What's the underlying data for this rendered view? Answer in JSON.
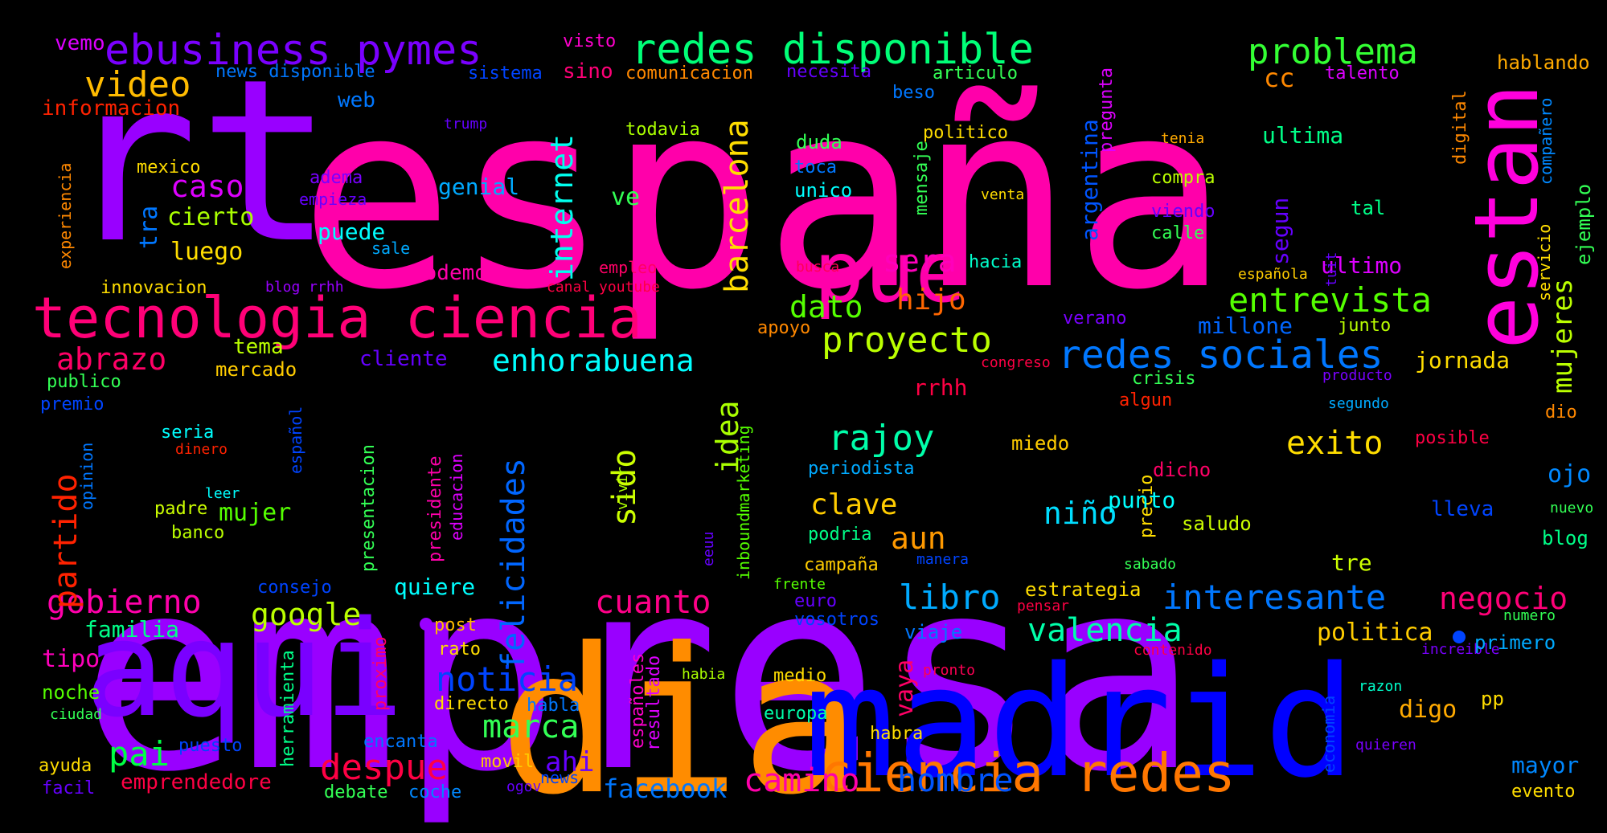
{
  "words": [
    {
      "text": "empresa",
      "color": "#9900ff"
    },
    {
      "text": "españa",
      "color": "#ff00aa"
    },
    {
      "text": "rt",
      "color": "#9900ff"
    },
    {
      "text": "dia",
      "color": "#ff8c00"
    },
    {
      "text": "madrid",
      "color": "#0000ff"
    },
    {
      "text": "aqui",
      "color": "#7a00ff"
    },
    {
      "text": "pue",
      "color": "#ff00aa"
    },
    {
      "text": "estan",
      "color": "#ff00dd"
    },
    {
      "text": "tecnologia ciencia",
      "color": "#ff0077"
    },
    {
      "text": "ciencia redes",
      "color": "#ff7700"
    },
    {
      "text": "redes sociales",
      "color": "#0077ff"
    },
    {
      "text": "ebusiness pymes",
      "color": "#7a00ff"
    },
    {
      "text": "redes disponible",
      "color": "#00ff77"
    },
    {
      "text": "problema",
      "color": "#33ff33"
    },
    {
      "text": "video",
      "color": "#ffbb00"
    },
    {
      "text": "enhorabuena",
      "color": "#00ffff"
    },
    {
      "text": "proyecto",
      "color": "#bbff00"
    },
    {
      "text": "entrevista",
      "color": "#55ff00"
    },
    {
      "text": "felicidades",
      "color": "#0066ff"
    },
    {
      "text": "internet",
      "color": "#00ffee"
    },
    {
      "text": "barcelona",
      "color": "#ffdd00"
    },
    {
      "text": "gobierno",
      "color": "#ff00aa"
    },
    {
      "text": "interesante",
      "color": "#0077ff"
    },
    {
      "text": "negocio",
      "color": "#ff0077"
    },
    {
      "text": "noticia",
      "color": "#0044ff"
    },
    {
      "text": "despue",
      "color": "#ff0044"
    },
    {
      "text": "cuanto",
      "color": "#ff0088"
    },
    {
      "text": "valencia",
      "color": "#00ffaa"
    },
    {
      "text": "libro",
      "color": "#00aaff"
    },
    {
      "text": "camino",
      "color": "#ff00aa"
    },
    {
      "text": "hombre",
      "color": "#0055ff"
    },
    {
      "text": "facebook",
      "color": "#0077ff"
    },
    {
      "text": "google",
      "color": "#bbff00"
    },
    {
      "text": "partido",
      "color": "#ff2200"
    },
    {
      "text": "abrazo",
      "color": "#ff0066"
    },
    {
      "text": "mujeres",
      "color": "#bbff00"
    },
    {
      "text": "exito",
      "color": "#ffdd00"
    },
    {
      "text": "rajoy",
      "color": "#00ffaa"
    },
    {
      "text": "clave",
      "color": "#ffcc00"
    },
    {
      "text": "marca",
      "color": "#33ff55"
    },
    {
      "text": "pai",
      "color": "#00ff44"
    },
    {
      "text": "sido",
      "color": "#ccff00"
    },
    {
      "text": "idea",
      "color": "#aaff00"
    },
    {
      "text": "sera",
      "color": "#ff00bb"
    },
    {
      "text": "hijo",
      "color": "#ff6600"
    },
    {
      "text": "dato",
      "color": "#55ff00"
    },
    {
      "text": "niño",
      "color": "#00ddff"
    },
    {
      "text": "aun",
      "color": "#ff9900"
    },
    {
      "text": "caso",
      "color": "#dd00ff"
    },
    {
      "text": "cc",
      "color": "#ff8800"
    },
    {
      "text": "ultima",
      "color": "#00ff88"
    },
    {
      "text": "ultimo",
      "color": "#dd00ff"
    },
    {
      "text": "jornada",
      "color": "#ffdd00"
    },
    {
      "text": "millone",
      "color": "#0066ff"
    },
    {
      "text": "segun",
      "color": "#6600ff"
    },
    {
      "text": "argentina",
      "color": "#0055ff"
    },
    {
      "text": "ejemplo",
      "color": "#33ff55"
    },
    {
      "text": "politica",
      "color": "#ffcc00"
    },
    {
      "text": "tre",
      "color": "#ccff00"
    },
    {
      "text": "digo",
      "color": "#ffaa00"
    },
    {
      "text": "mayor",
      "color": "#0088ff"
    },
    {
      "text": "ahi",
      "color": "#6600ff"
    },
    {
      "text": "tipo",
      "color": "#ff00bb"
    },
    {
      "text": "familia",
      "color": "#00ff88"
    },
    {
      "text": "mujer",
      "color": "#55ff00"
    },
    {
      "text": "cierto",
      "color": "#aaff00"
    },
    {
      "text": "luego",
      "color": "#ffdd00"
    },
    {
      "text": "tra",
      "color": "#0077ff"
    },
    {
      "text": "web",
      "color": "#0077ff"
    },
    {
      "text": "genial",
      "color": "#00aaff"
    },
    {
      "text": "puede",
      "color": "#00ffff"
    },
    {
      "text": "podemo",
      "color": "#ff00aa"
    },
    {
      "text": "cliente",
      "color": "#6600ff"
    },
    {
      "text": "tema",
      "color": "#bbff00"
    },
    {
      "text": "mercado",
      "color": "#ffcc00"
    },
    {
      "text": "informacion",
      "color": "#ff2200"
    },
    {
      "text": "vemo",
      "color": "#dd00ff"
    },
    {
      "text": "news disponible",
      "color": "#0077ff"
    },
    {
      "text": "sistema",
      "color": "#0044ff"
    },
    {
      "text": "sino",
      "color": "#ff0077"
    },
    {
      "text": "visto",
      "color": "#ff00cc"
    },
    {
      "text": "comunicacion",
      "color": "#ff8800"
    },
    {
      "text": "necesita",
      "color": "#6600ff"
    },
    {
      "text": "articulo",
      "color": "#33ff55"
    },
    {
      "text": "talento",
      "color": "#dd00ff"
    },
    {
      "text": "hablando",
      "color": "#ffaa00"
    },
    {
      "text": "todavia",
      "color": "#aaff00"
    },
    {
      "text": "duda",
      "color": "#33ff55"
    },
    {
      "text": "toca",
      "color": "#0077ff"
    },
    {
      "text": "unico",
      "color": "#00ffff"
    },
    {
      "text": "politico",
      "color": "#ffdd00"
    },
    {
      "text": "compra",
      "color": "#bbff00"
    },
    {
      "text": "viendo",
      "color": "#6600ff"
    },
    {
      "text": "calle",
      "color": "#33ff55"
    },
    {
      "text": "tal",
      "color": "#00ff88"
    },
    {
      "text": "mexico",
      "color": "#ffdd00"
    },
    {
      "text": "adema",
      "color": "#7a00ff"
    },
    {
      "text": "empieza",
      "color": "#6600ff"
    },
    {
      "text": "ve",
      "color": "#33ff55"
    },
    {
      "text": "sale",
      "color": "#00aaff"
    },
    {
      "text": "innovacion",
      "color": "#ffdd00"
    },
    {
      "text": "blog rrhh",
      "color": "#9900ff"
    },
    {
      "text": "canal youtube",
      "color": "#ff0044"
    },
    {
      "text": "empleo",
      "color": "#ff0066"
    },
    {
      "text": "busca",
      "color": "#ff0055"
    },
    {
      "text": "hacia",
      "color": "#00ffcc"
    },
    {
      "text": "verano",
      "color": "#7a00ff"
    },
    {
      "text": "junto",
      "color": "#bbff00"
    },
    {
      "text": "española",
      "color": "#ffcc00"
    },
    {
      "text": "apoyo",
      "color": "#ff8800"
    },
    {
      "text": "congreso",
      "color": "#ff0044"
    },
    {
      "text": "crisis",
      "color": "#33ff55"
    },
    {
      "text": "algun",
      "color": "#ff2200"
    },
    {
      "text": "producto",
      "color": "#7a00ff"
    },
    {
      "text": "segundo",
      "color": "#00aaff"
    },
    {
      "text": "dio",
      "color": "#ff8800"
    },
    {
      "text": "rrhh",
      "color": "#ff0044"
    },
    {
      "text": "publico",
      "color": "#33ff55"
    },
    {
      "text": "premio",
      "color": "#0044ff"
    },
    {
      "text": "seria",
      "color": "#00ffff"
    },
    {
      "text": "dinero",
      "color": "#ff2200"
    },
    {
      "text": "opinion",
      "color": "#0077ff"
    },
    {
      "text": "leer",
      "color": "#00ffff"
    },
    {
      "text": "padre",
      "color": "#ccff00"
    },
    {
      "text": "banco",
      "color": "#bbff00"
    },
    {
      "text": "español",
      "color": "#0044ff"
    },
    {
      "text": "presentacion",
      "color": "#33ff55"
    },
    {
      "text": "presidente",
      "color": "#ff00aa"
    },
    {
      "text": "educacion",
      "color": "#dd00ff"
    },
    {
      "text": "vivir",
      "color": "#aaff00"
    },
    {
      "text": "inboundmarketing",
      "color": "#55ff00"
    },
    {
      "text": "periodista",
      "color": "#00aaff"
    },
    {
      "text": "miedo",
      "color": "#ffcc00"
    },
    {
      "text": "precio",
      "color": "#ffdd00"
    },
    {
      "text": "punto",
      "color": "#00ffff"
    },
    {
      "text": "saludo",
      "color": "#ccff00"
    },
    {
      "text": "dicho",
      "color": "#ff0066"
    },
    {
      "text": "posible",
      "color": "#ff0044"
    },
    {
      "text": "ojo",
      "color": "#0088ff"
    },
    {
      "text": "lleva",
      "color": "#0044ff"
    },
    {
      "text": "nuevo",
      "color": "#33ff55"
    },
    {
      "text": "blog",
      "color": "#00ff88"
    },
    {
      "text": "eeuu",
      "color": "#6600ff"
    },
    {
      "text": "podria",
      "color": "#00ff88"
    },
    {
      "text": "campaña",
      "color": "#ffcc00"
    },
    {
      "text": "frente",
      "color": "#55ff00"
    },
    {
      "text": "euro",
      "color": "#6600ff"
    },
    {
      "text": "vosotros",
      "color": "#0044ff"
    },
    {
      "text": "manera",
      "color": "#0044ff"
    },
    {
      "text": "sabado",
      "color": "#33ff55"
    },
    {
      "text": "estrategia",
      "color": "#ffdd00"
    },
    {
      "text": "pensar",
      "color": "#ff0044"
    },
    {
      "text": "consejo",
      "color": "#0044ff"
    },
    {
      "text": "quiere",
      "color": "#00ffff"
    },
    {
      "text": "post",
      "color": "#ffbb00"
    },
    {
      "text": "rato",
      "color": "#ffdd00"
    },
    {
      "text": "proximo",
      "color": "#ff0066"
    },
    {
      "text": "viaje",
      "color": "#0077ff"
    },
    {
      "text": "numero",
      "color": "#33ff55"
    },
    {
      "text": "contenido",
      "color": "#ff0044"
    },
    {
      "text": "increible",
      "color": "#7a00ff"
    },
    {
      "text": "primero",
      "color": "#00aaff"
    },
    {
      "text": "noche",
      "color": "#55ff00"
    },
    {
      "text": "ciudad",
      "color": "#33ff55"
    },
    {
      "text": "herramienta",
      "color": "#00ff88"
    },
    {
      "text": "directo",
      "color": "#ffdd00"
    },
    {
      "text": "habla",
      "color": "#0077ff"
    },
    {
      "text": "españoles",
      "color": "#ff00cc"
    },
    {
      "text": "resultado",
      "color": "#dd00ff"
    },
    {
      "text": "habia",
      "color": "#aaff00"
    },
    {
      "text": "medio",
      "color": "#ffdd00"
    },
    {
      "text": "pronto",
      "color": "#ff0055"
    },
    {
      "text": "vaya",
      "color": "#ff0066"
    },
    {
      "text": "europa",
      "color": "#00ffaa"
    },
    {
      "text": "habra",
      "color": "#ffdd00"
    },
    {
      "text": "economia",
      "color": "#0044ff"
    },
    {
      "text": "razon",
      "color": "#00ffcc"
    },
    {
      "text": "pp",
      "color": "#ffdd00"
    },
    {
      "text": "quieren",
      "color": "#7a00ff"
    },
    {
      "text": "puesto",
      "color": "#0044ff"
    },
    {
      "text": "encanta",
      "color": "#0077ff"
    },
    {
      "text": "ayuda",
      "color": "#ffdd00"
    },
    {
      "text": "facil",
      "color": "#6600ff"
    },
    {
      "text": "emprendedore",
      "color": "#ff0044"
    },
    {
      "text": "debate",
      "color": "#33ff55"
    },
    {
      "text": "coche",
      "color": "#0088ff"
    },
    {
      "text": "movil",
      "color": "#ffcc00"
    },
    {
      "text": "ogov",
      "color": "#6600ff"
    },
    {
      "text": "news",
      "color": "#0044ff"
    },
    {
      "text": "evento",
      "color": "#ffdd00"
    },
    {
      "text": "trump",
      "color": "#6600ff"
    },
    {
      "text": "beso",
      "color": "#0077ff"
    },
    {
      "text": "mensaje",
      "color": "#33ff55"
    },
    {
      "text": "pregunta",
      "color": "#dd00ff"
    },
    {
      "text": "tenia",
      "color": "#ffaa00"
    },
    {
      "text": "venta",
      "color": "#ffdd00"
    },
    {
      "text": "digital",
      "color": "#ff8800"
    },
    {
      "text": "compañero",
      "color": "#0088ff"
    },
    {
      "text": "servicio",
      "color": "#ffdd00"
    },
    {
      "text": "tuit",
      "color": "#6600ff"
    },
    {
      "text": "experiencia",
      "color": "#ff8800"
    }
  ]
}
